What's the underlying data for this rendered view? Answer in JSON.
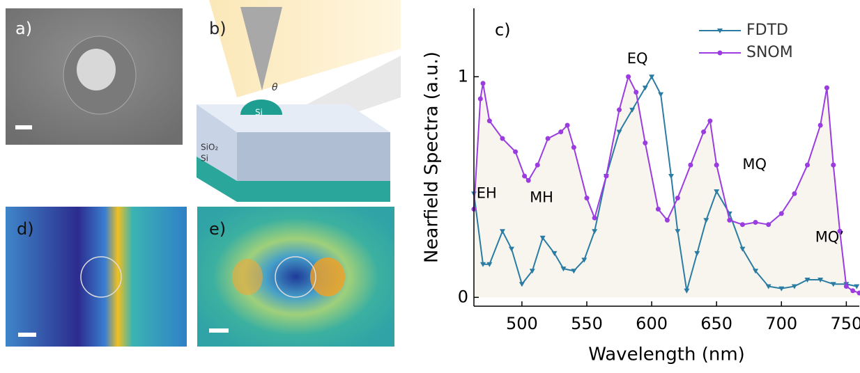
{
  "panels": {
    "a": "a)",
    "b": "b)",
    "b_labels": [
      "Si",
      "SiO₂",
      "Si",
      "θ"
    ],
    "d": "d)",
    "e": "e)"
  },
  "chart_data": {
    "type": "line",
    "panel_label": "c)",
    "xlabel": "Wavelength (nm)",
    "ylabel": "Nearfield Spectra (a.u.)",
    "xlim": [
      463,
      760
    ],
    "xticks": [
      500,
      550,
      600,
      650,
      700,
      750
    ],
    "ylim": [
      -0.04,
      1.31
    ],
    "yticks": [
      0,
      1
    ],
    "legend": "upper right",
    "annotations": [
      "EH",
      "MH",
      "EQ",
      "MQ",
      "MQ’"
    ],
    "series": [
      {
        "name": "FDTD",
        "color": "#2a7ca3",
        "marker": "triangle-down",
        "x": [
          463,
          470,
          475,
          485,
          492,
          500,
          508,
          516,
          525,
          532,
          540,
          548,
          556,
          565,
          575,
          585,
          595,
          600,
          607,
          615,
          620,
          627,
          635,
          642,
          650,
          660,
          670,
          680,
          690,
          700,
          710,
          720,
          730,
          740,
          750,
          758
        ],
        "values": [
          0.47,
          0.15,
          0.15,
          0.3,
          0.22,
          0.06,
          0.12,
          0.27,
          0.2,
          0.13,
          0.12,
          0.17,
          0.3,
          0.55,
          0.75,
          0.85,
          0.95,
          1.0,
          0.92,
          0.55,
          0.3,
          0.03,
          0.2,
          0.35,
          0.48,
          0.38,
          0.22,
          0.12,
          0.05,
          0.04,
          0.05,
          0.08,
          0.08,
          0.06,
          0.06,
          0.05
        ]
      },
      {
        "name": "SNOM",
        "color": "#9a3ce0",
        "marker": "circle",
        "fill_color": "#f8f4ee",
        "x": [
          463,
          468,
          470,
          475,
          485,
          495,
          502,
          505,
          512,
          520,
          530,
          535,
          540,
          550,
          556,
          565,
          575,
          582,
          588,
          595,
          605,
          612,
          620,
          630,
          640,
          645,
          650,
          660,
          670,
          680,
          690,
          700,
          710,
          720,
          730,
          735,
          740,
          745,
          750,
          755,
          760
        ],
        "values": [
          0.4,
          0.9,
          0.97,
          0.8,
          0.72,
          0.66,
          0.55,
          0.53,
          0.6,
          0.72,
          0.75,
          0.78,
          0.68,
          0.45,
          0.36,
          0.55,
          0.85,
          1.0,
          0.93,
          0.7,
          0.4,
          0.35,
          0.45,
          0.6,
          0.75,
          0.8,
          0.6,
          0.35,
          0.33,
          0.34,
          0.33,
          0.38,
          0.47,
          0.6,
          0.78,
          0.95,
          0.6,
          0.3,
          0.05,
          0.03,
          0.02
        ]
      }
    ]
  }
}
